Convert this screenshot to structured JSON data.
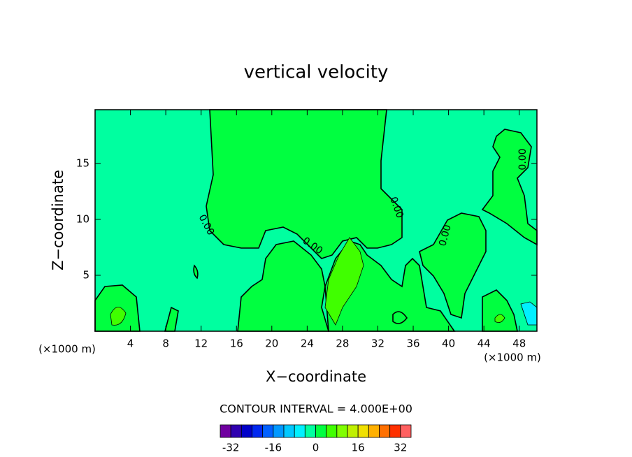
{
  "chart_data": {
    "type": "contour",
    "title": "vertical velocity",
    "xlabel": "X−coordinate",
    "ylabel": "Z−coordinate",
    "x_unit": "(×1000 m)",
    "y_unit": "(×1000 m)",
    "xlim": [
      0,
      50
    ],
    "ylim": [
      0,
      19.8
    ],
    "xticks": [
      4,
      8,
      12,
      16,
      20,
      24,
      28,
      32,
      36,
      40,
      44,
      48
    ],
    "yticks": [
      5,
      10,
      15
    ],
    "contour_labels": [
      "0.00",
      "0.00",
      "0.00",
      "0.00",
      "0.00"
    ],
    "contour_interval_label": "CONTOUR INTERVAL = 4.000E+00",
    "colorbar": {
      "levels": [
        -36,
        -32,
        -28,
        -24,
        -20,
        -16,
        -12,
        -8,
        -4,
        0,
        4,
        8,
        12,
        16,
        20,
        24,
        28,
        32,
        36
      ],
      "colors": [
        "#7000a0",
        "#3000b0",
        "#0000c8",
        "#0028f0",
        "#0060ff",
        "#0098ff",
        "#00c8ff",
        "#00f0ff",
        "#00ffa0",
        "#00ff40",
        "#40ff00",
        "#80ff00",
        "#c0f000",
        "#f0e000",
        "#ffb000",
        "#ff7000",
        "#ff3000",
        "#ff6060"
      ],
      "ticks": [
        -32,
        -16,
        0,
        16,
        32
      ]
    }
  }
}
